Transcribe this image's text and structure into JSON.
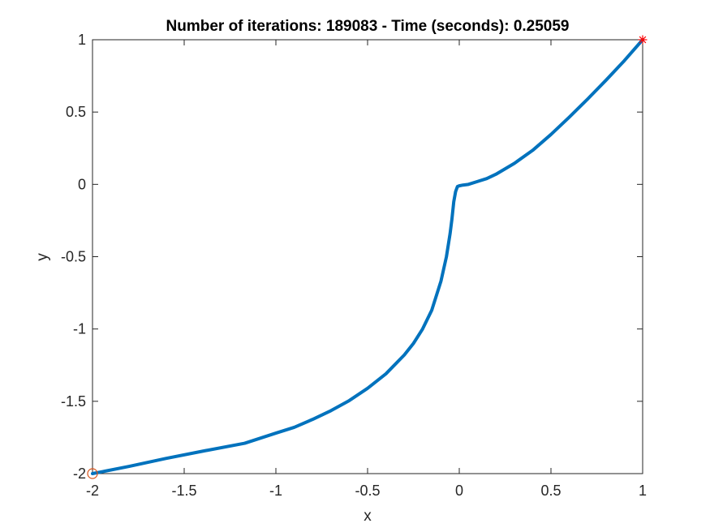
{
  "chart_data": {
    "type": "line",
    "title": "Number of iterations: 189083 - Time (seconds): 0.25059",
    "xlabel": "x",
    "ylabel": "y",
    "xlim": [
      -2,
      1
    ],
    "ylim": [
      -2,
      1
    ],
    "grid": false,
    "xticks": [
      -2,
      -1.5,
      -1,
      -0.5,
      0,
      0.5,
      1
    ],
    "yticks": [
      -2,
      -1.5,
      -1,
      -0.5,
      0,
      0.5,
      1
    ],
    "xtick_labels": [
      "-2",
      "-1.5",
      "-1",
      "-0.5",
      "0",
      "0.5",
      "1"
    ],
    "ytick_labels": [
      "-2",
      "-1.5",
      "-1",
      "-0.5",
      "0",
      "0.5",
      "1"
    ],
    "series": [
      {
        "color": "#0072BD",
        "x": [
          -2.0,
          -1.8,
          -1.6,
          -1.4,
          -1.17,
          -1.0,
          -0.9,
          -0.8,
          -0.7,
          -0.6,
          -0.5,
          -0.4,
          -0.3,
          -0.25,
          -0.2,
          -0.15,
          -0.1,
          -0.07,
          -0.05,
          -0.04,
          -0.03,
          -0.02,
          -0.01,
          0.0,
          0.02,
          0.05,
          0.1,
          0.15,
          0.2,
          0.3,
          0.4,
          0.5,
          0.6,
          0.7,
          0.8,
          0.9,
          1.0
        ],
        "y": [
          -2.0,
          -1.95,
          -1.895,
          -1.845,
          -1.79,
          -1.72,
          -1.68,
          -1.625,
          -1.565,
          -1.495,
          -1.41,
          -1.31,
          -1.18,
          -1.1,
          -1.0,
          -0.87,
          -0.67,
          -0.5,
          -0.34,
          -0.24,
          -0.12,
          -0.05,
          -0.015,
          -0.01,
          -0.005,
          0.0,
          0.02,
          0.04,
          0.07,
          0.145,
          0.235,
          0.345,
          0.465,
          0.59,
          0.72,
          0.855,
          1.0
        ]
      }
    ],
    "markers": [
      {
        "symbol": "circle",
        "x": -2,
        "y": -2,
        "color": "#D95319"
      },
      {
        "symbol": "asterisk",
        "x": 1,
        "y": 1,
        "color": "#FF0000"
      }
    ]
  }
}
